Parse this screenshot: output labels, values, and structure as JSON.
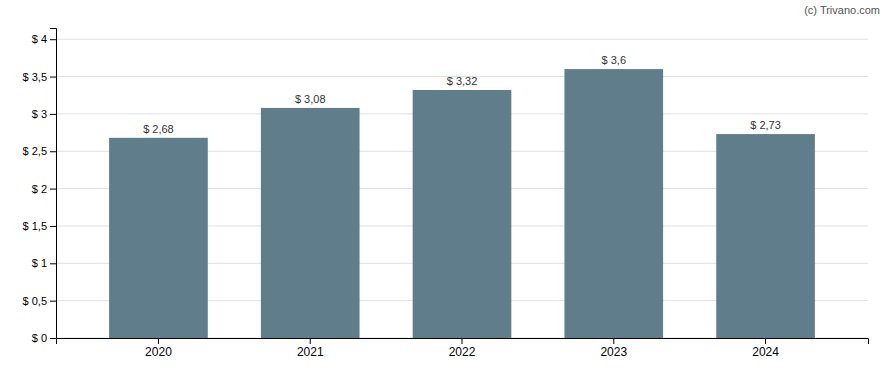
{
  "chart_data": {
    "type": "bar",
    "categories": [
      "2020",
      "2021",
      "2022",
      "2023",
      "2024"
    ],
    "values": [
      2.68,
      3.08,
      3.32,
      3.6,
      2.73
    ],
    "value_labels": [
      "$ 2,68",
      "$ 3,08",
      "$ 3,32",
      "$ 3,6",
      "$ 2,73"
    ],
    "data_labels": true,
    "color": "#607d8b",
    "ylim": [
      0,
      4.15
    ],
    "yticks": [
      {
        "value": 0,
        "label": "$ 0"
      },
      {
        "value": 0.5,
        "label": "$ 0,5"
      },
      {
        "value": 1.0,
        "label": "$ 1"
      },
      {
        "value": 1.5,
        "label": "$ 1,5"
      },
      {
        "value": 2.0,
        "label": "$ 2"
      },
      {
        "value": 2.5,
        "label": "$ 2,5"
      },
      {
        "value": 3.0,
        "label": "$ 3"
      },
      {
        "value": 3.5,
        "label": "$ 3,5"
      },
      {
        "value": 4.0,
        "label": "$ 4"
      }
    ],
    "grid": true,
    "annotations": [
      "(c) Trivano.com"
    ]
  }
}
